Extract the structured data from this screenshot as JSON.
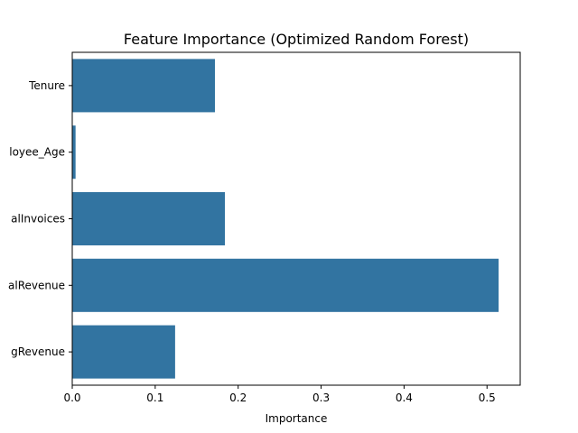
{
  "chart_data": {
    "type": "bar",
    "orientation": "horizontal",
    "title": "Feature Importance (Optimized Random Forest)",
    "xlabel": "Importance",
    "ylabel": "",
    "categories": [
      "Tenure",
      "Employee_Age",
      "TotalInvoices",
      "TotalRevenue",
      "AvgRevenue"
    ],
    "category_labels_visible": [
      "Tenure",
      "loyee_Age",
      "alInvoices",
      "alRevenue",
      "gRevenue"
    ],
    "values": [
      0.172,
      0.004,
      0.184,
      0.514,
      0.124
    ],
    "xlim": [
      0,
      0.54
    ],
    "xticks": [
      0.0,
      0.1,
      0.2,
      0.3,
      0.4,
      0.5
    ],
    "xtick_labels": [
      "0.0",
      "0.1",
      "0.2",
      "0.3",
      "0.4",
      "0.5"
    ],
    "grid": false,
    "bar_color": "#3274a1"
  }
}
